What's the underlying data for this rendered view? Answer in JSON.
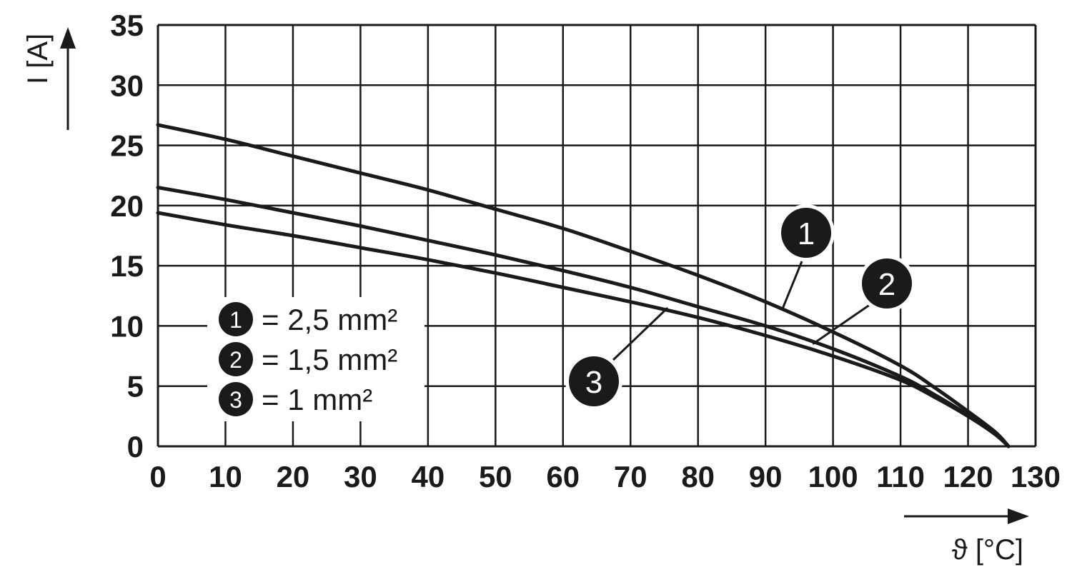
{
  "chart_data": {
    "type": "line",
    "title": "",
    "xlabel": "ϑ [°C]",
    "ylabel": "I [A]",
    "xlim": [
      0,
      130
    ],
    "ylim": [
      0,
      35
    ],
    "x_ticks": [
      "0",
      "10",
      "20",
      "30",
      "40",
      "50",
      "60",
      "70",
      "80",
      "90",
      "100",
      "110",
      "120",
      "130"
    ],
    "y_ticks": [
      "0",
      "5",
      "10",
      "15",
      "20",
      "25",
      "30",
      "35"
    ],
    "grid": true,
    "series": [
      {
        "marker": "1",
        "x": [
          0,
          10,
          20,
          30,
          40,
          50,
          60,
          70,
          80,
          90,
          100,
          110,
          115,
          120,
          124,
          126
        ],
        "y": [
          26.7,
          25.5,
          24.1,
          22.7,
          21.3,
          19.7,
          18.1,
          16.2,
          14.2,
          12.0,
          9.5,
          6.7,
          4.9,
          2.9,
          1.2,
          0
        ]
      },
      {
        "marker": "2",
        "x": [
          0,
          10,
          20,
          30,
          40,
          50,
          60,
          70,
          80,
          90,
          100,
          110,
          115,
          120,
          124,
          126
        ],
        "y": [
          21.5,
          20.5,
          19.4,
          18.3,
          17.1,
          15.9,
          14.6,
          13.2,
          11.6,
          10.0,
          8.1,
          5.8,
          4.3,
          2.6,
          1.1,
          0
        ]
      },
      {
        "marker": "3",
        "x": [
          0,
          10,
          20,
          30,
          40,
          50,
          60,
          70,
          80,
          90,
          100,
          110,
          115,
          120,
          124,
          126
        ],
        "y": [
          19.4,
          18.4,
          17.5,
          16.5,
          15.5,
          14.4,
          13.2,
          12.0,
          10.7,
          9.2,
          7.5,
          5.5,
          4.1,
          2.5,
          1.0,
          0
        ]
      }
    ],
    "legend": {
      "placement": "lower-left",
      "entries": [
        {
          "marker": "1",
          "label": "= 2,5 mm²"
        },
        {
          "marker": "2",
          "label": "= 1,5 mm²"
        },
        {
          "marker": "3",
          "label": "= 1 mm²"
        }
      ]
    },
    "colors": {
      "line": "#1a1a1a",
      "grid": "#1a1a1a",
      "badge": "#1a1a1a"
    }
  }
}
